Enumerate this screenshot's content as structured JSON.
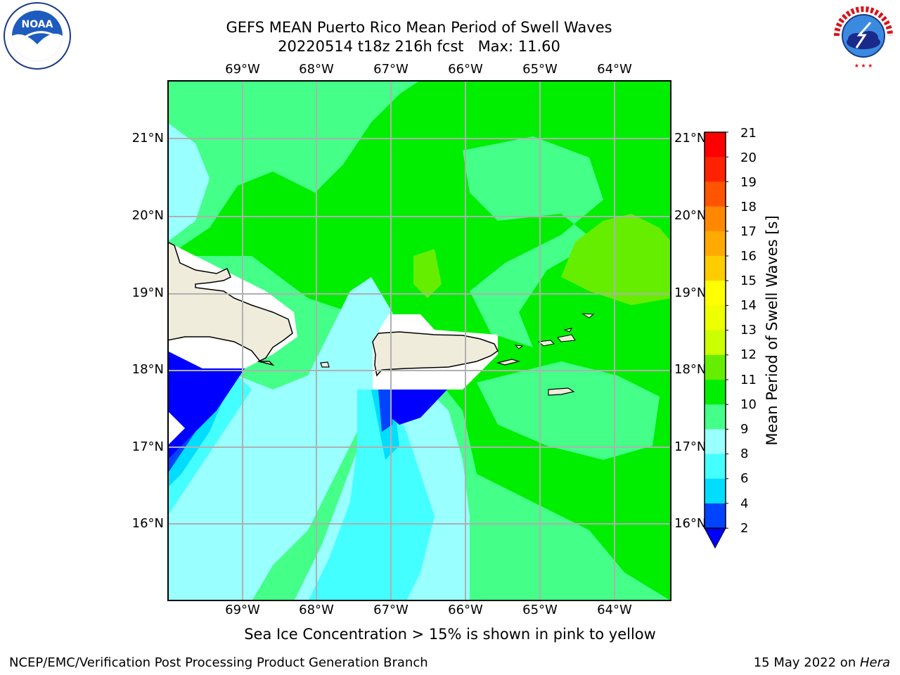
{
  "title": {
    "line1": "GEFS MEAN Puerto Rico Mean Period of Swell Waves",
    "line2": "20220514 t18z 216h fcst   Max: 11.60"
  },
  "axes": {
    "lon_labels": [
      "69°W",
      "68°W",
      "67°W",
      "66°W",
      "65°W",
      "64°W"
    ],
    "lat_labels": [
      "21°N",
      "20°N",
      "19°N",
      "18°N",
      "17°N",
      "16°N"
    ]
  },
  "colorbar": {
    "title": "Mean Period of Swell Waves [s]",
    "ticks": [
      "21",
      "20",
      "19",
      "18",
      "17",
      "16",
      "15",
      "14",
      "13",
      "12",
      "11",
      "10",
      "9",
      "8",
      "6",
      "4",
      "2"
    ],
    "colors": {
      "2-4": "#0044ff",
      "4-6": "#00ddff",
      "6-8": "#44ffff",
      "8-9": "#99ffff",
      "9-10": "#44ff88",
      "10-11": "#00ee00",
      "11-12": "#66ee00",
      "12-13": "#ccff00",
      "13-14": "#eeff00",
      "14-15": "#ffff00",
      "15-16": "#ffcc00",
      "16-17": "#ffaa00",
      "17-18": "#ff8800",
      "18-19": "#ff5500",
      "19-20": "#ff2200",
      "20-21": "#ff0000",
      "under": "#0000ff"
    }
  },
  "legend_note": "Sea Ice Concentration > 15% is shown in pink to yellow",
  "credits": {
    "left": "NCEP/EMC/Verification Post Processing Product Generation Branch",
    "right_prefix": "15 May 2022 on ",
    "right_machine": "Hera"
  },
  "logos": {
    "left_text": "NOAA",
    "right_text": "NATIONAL WEATHER SERVICE"
  }
}
